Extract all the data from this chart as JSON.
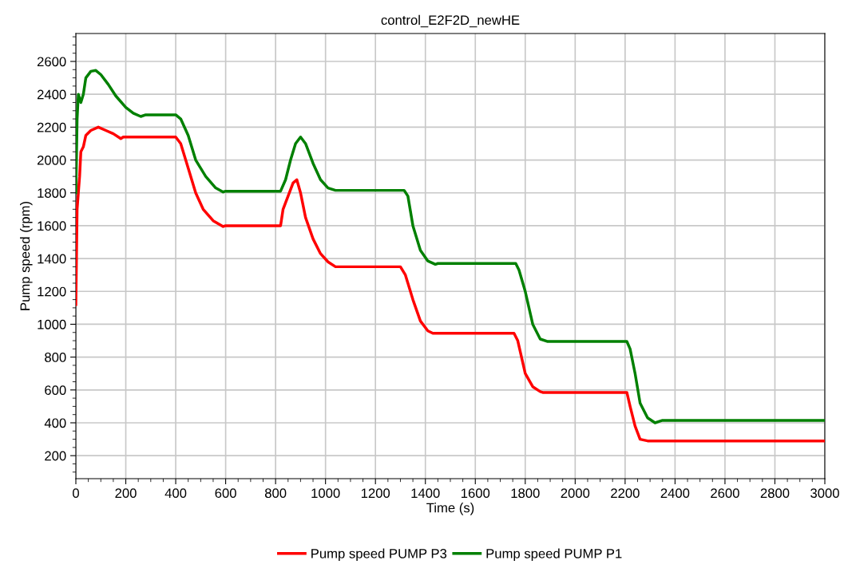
{
  "chart_data": {
    "type": "line",
    "title": "control_E2F2D_newHE",
    "xlabel": "Time (s)",
    "ylabel": "Pump speed (rpm)",
    "xlim": [
      0,
      3000
    ],
    "xticks": [
      0,
      200,
      400,
      600,
      800,
      1000,
      1200,
      1400,
      1600,
      1800,
      2000,
      2200,
      2400,
      2600,
      2800,
      3000
    ],
    "ylim": [
      60,
      2770
    ],
    "yticks": [
      200,
      400,
      600,
      800,
      1000,
      1200,
      1400,
      1600,
      1800,
      2000,
      2200,
      2400,
      2600
    ],
    "grid": true,
    "legend": "bottom",
    "marker": "none",
    "line_style": "solid",
    "series": [
      {
        "name": "Pump speed PUMP P3",
        "color": "#ff0000",
        "x": [
          0,
          5,
          10,
          15,
          20,
          30,
          40,
          60,
          90,
          120,
          150,
          180,
          190,
          400,
          420,
          450,
          480,
          510,
          550,
          590,
          600,
          820,
          830,
          850,
          870,
          885,
          900,
          920,
          950,
          980,
          1010,
          1040,
          1300,
          1320,
          1350,
          1380,
          1410,
          1430,
          1755,
          1770,
          1800,
          1830,
          1860,
          1870,
          2207,
          2220,
          2240,
          2260,
          2290,
          3000
        ],
        "values": [
          1120,
          1700,
          1800,
          1900,
          2050,
          2080,
          2150,
          2180,
          2200,
          2180,
          2160,
          2130,
          2140,
          2140,
          2100,
          1950,
          1800,
          1700,
          1630,
          1595,
          1600,
          1600,
          1700,
          1780,
          1860,
          1880,
          1800,
          1650,
          1520,
          1430,
          1380,
          1350,
          1350,
          1300,
          1150,
          1020,
          960,
          945,
          945,
          900,
          700,
          620,
          590,
          585,
          585,
          500,
          380,
          300,
          290,
          290
        ]
      },
      {
        "name": "Pump speed PUMP P1",
        "color": "#008000",
        "x": [
          0,
          5,
          10,
          20,
          30,
          40,
          60,
          80,
          100,
          130,
          160,
          200,
          230,
          260,
          280,
          400,
          420,
          450,
          480,
          520,
          560,
          590,
          600,
          820,
          840,
          860,
          880,
          900,
          920,
          950,
          980,
          1010,
          1040,
          1315,
          1330,
          1350,
          1380,
          1410,
          1440,
          1450,
          1762,
          1775,
          1800,
          1830,
          1860,
          1890,
          1900,
          2207,
          2220,
          2240,
          2260,
          2290,
          2320,
          2340,
          2350,
          3000
        ],
        "values": [
          1800,
          2250,
          2400,
          2350,
          2400,
          2500,
          2540,
          2545,
          2520,
          2460,
          2390,
          2320,
          2285,
          2265,
          2275,
          2275,
          2250,
          2150,
          2000,
          1900,
          1830,
          1805,
          1810,
          1810,
          1880,
          2000,
          2100,
          2140,
          2100,
          1980,
          1880,
          1830,
          1815,
          1815,
          1780,
          1600,
          1450,
          1385,
          1365,
          1370,
          1370,
          1330,
          1200,
          1000,
          910,
          895,
          895,
          895,
          850,
          700,
          520,
          430,
          400,
          410,
          415,
          415
        ]
      }
    ]
  }
}
